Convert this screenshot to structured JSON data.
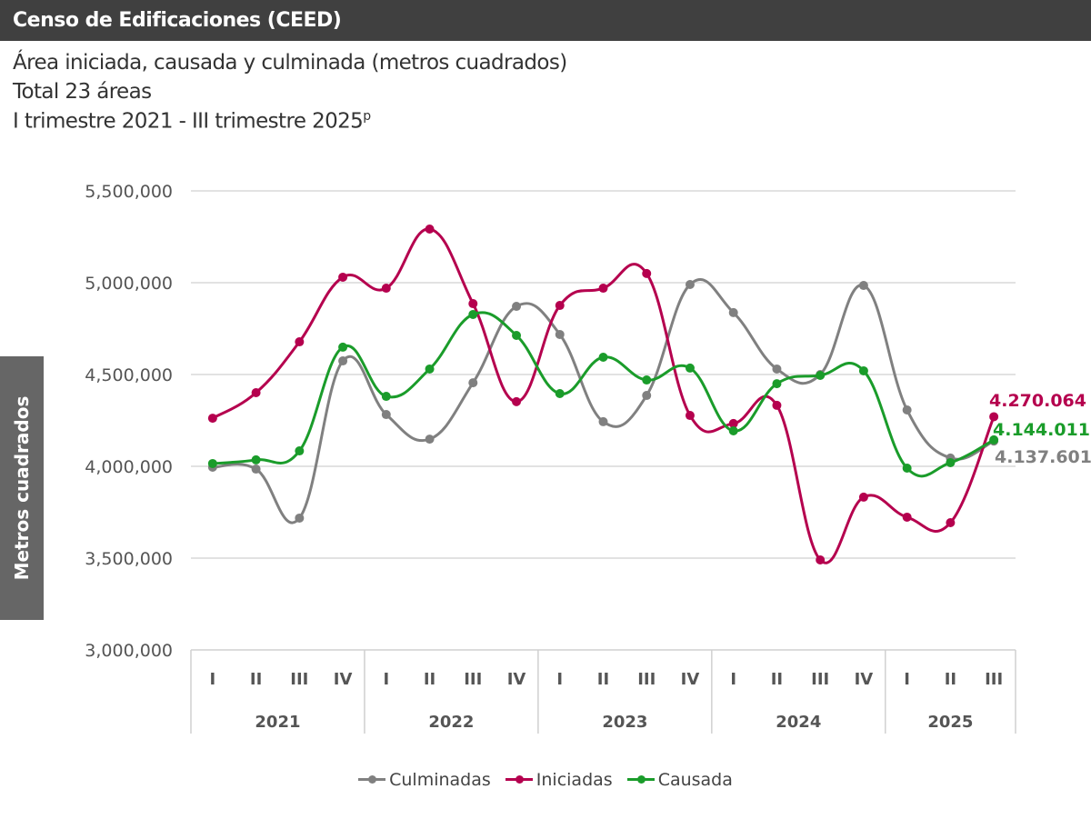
{
  "header": {
    "title": "Censo de Edificaciones (CEED)"
  },
  "subtitle": [
    "Área iniciada, causada y culminada (metros cuadrados)",
    "Total 23 áreas",
    "I trimestre 2021 - III trimestre 2025"
  ],
  "subtitle_superscript": "p",
  "chart_data": {
    "type": "line",
    "ylabel": "Metros cuadrados",
    "ylim": [
      3000000,
      5500000
    ],
    "yticks": [
      3000000,
      3500000,
      4000000,
      4500000,
      5000000,
      5500000
    ],
    "ytick_labels": [
      "3,000,000",
      "3,500,000",
      "4,000,000",
      "4,500,000",
      "5,000,000",
      "5,500,000"
    ],
    "grid": true,
    "smooth": true,
    "legend_position": "bottom",
    "categories": [
      "I",
      "II",
      "III",
      "IV",
      "I",
      "II",
      "III",
      "IV",
      "I",
      "II",
      "III",
      "IV",
      "I",
      "II",
      "III",
      "IV",
      "I",
      "II",
      "III"
    ],
    "years": [
      {
        "label": "2021",
        "count": 4
      },
      {
        "label": "2022",
        "count": 4
      },
      {
        "label": "2023",
        "count": 4
      },
      {
        "label": "2024",
        "count": 4
      },
      {
        "label": "2025",
        "count": 3
      }
    ],
    "series": [
      {
        "name": "Culminadas",
        "color": "#808080",
        "values": [
          3995000,
          3985000,
          3718000,
          4574000,
          4282000,
          4148000,
          4455000,
          4871000,
          4718000,
          4243000,
          4386000,
          4990000,
          4837000,
          4530000,
          4500000,
          4985000,
          4307000,
          4045000,
          4137601
        ],
        "end_label": "4.137.601"
      },
      {
        "name": "Iniciadas",
        "color": "#b5004e",
        "values": [
          4262000,
          4401000,
          4678000,
          5030000,
          4970000,
          5292000,
          4886000,
          4352000,
          4876000,
          4970000,
          5050000,
          4277000,
          4233000,
          4332000,
          3490000,
          3832000,
          3723000,
          3693000,
          4270064
        ],
        "end_label": "4.270.064"
      },
      {
        "name": "Causada",
        "color": "#1a9c2a",
        "values": [
          4015000,
          4035000,
          4084000,
          4649000,
          4381000,
          4530000,
          4827000,
          4713000,
          4396000,
          4594000,
          4470000,
          4535000,
          4193000,
          4450000,
          4495000,
          4520000,
          3990000,
          4020000,
          4144011
        ],
        "end_label": "4.144.011"
      }
    ]
  }
}
